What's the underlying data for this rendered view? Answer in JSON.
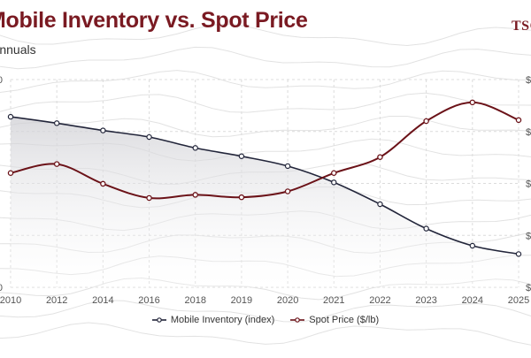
{
  "header": {
    "title": "Mobile Inventory vs. Spot Price",
    "subtitle": "Annuals",
    "logo": "TSC"
  },
  "colors": {
    "inventory": "#22253a",
    "price": "#6b1218",
    "grid": "#dcdcdc",
    "contour": "#e2e2e2"
  },
  "chart_data": {
    "type": "line",
    "title": "Mobile Inventory vs. Spot Price",
    "subtitle": "Annuals",
    "categories": [
      "2010",
      "2012",
      "2014",
      "2016",
      "2018",
      "2019",
      "2020",
      "2021",
      "2022",
      "2023",
      "2024",
      "2025"
    ],
    "series": [
      {
        "name": "Mobile Inventory (index)",
        "axis": "left",
        "values": [
          98.5,
          94.8,
          90.6,
          86.8,
          80.5,
          75.7,
          70.0,
          60.6,
          48.0,
          33.9,
          24.0,
          19.2
        ]
      },
      {
        "name": "Spot Price ($/lb)",
        "axis": "right",
        "values": [
          3.3,
          3.56,
          2.99,
          2.58,
          2.67,
          2.6,
          2.77,
          3.3,
          3.76,
          4.8,
          5.34,
          4.83
        ]
      }
    ],
    "left_axis": {
      "ticks": [
        "0",
        "",
        "",
        "",
        "0"
      ],
      "ylim": [
        0,
        120
      ]
    },
    "right_axis": {
      "ticks": [
        "$",
        "$",
        "$",
        "$",
        "$"
      ],
      "ylim": [
        0.0,
        6.0
      ]
    },
    "legend": [
      "Mobile Inventory (index)",
      "Spot Price ($/lb)"
    ],
    "legend_position": "bottom-center",
    "grid": true
  }
}
